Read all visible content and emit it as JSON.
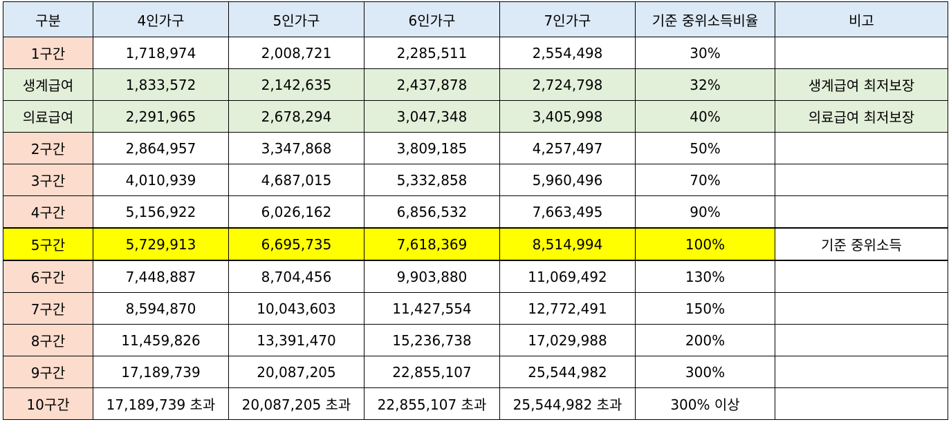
{
  "headers": [
    "구분",
    "4인가구",
    "5인가구",
    "6인가구",
    "7인가구",
    "기준 중위소득비율",
    "비고"
  ],
  "rows": [
    {
      "label": "1구간",
      "values": [
        "1,718,974",
        "2,008,721",
        "2,285,511",
        "2,554,498"
      ],
      "ratio": "30%",
      "note": ""
    },
    {
      "label": "생계급여",
      "values": [
        "1,833,572",
        "2,142,635",
        "2,437,878",
        "2,724,798"
      ],
      "ratio": "32%",
      "note": "생계급여 최저보장"
    },
    {
      "label": "의료급여",
      "values": [
        "2,291,965",
        "2,678,294",
        "3,047,348",
        "3,405,998"
      ],
      "ratio": "40%",
      "note": "의료급여 최저보장"
    },
    {
      "label": "2구간",
      "values": [
        "2,864,957",
        "3,347,868",
        "3,809,185",
        "4,257,497"
      ],
      "ratio": "50%",
      "note": ""
    },
    {
      "label": "3구간",
      "values": [
        "4,010,939",
        "4,687,015",
        "5,332,858",
        "5,960,496"
      ],
      "ratio": "70%",
      "note": ""
    },
    {
      "label": "4구간",
      "values": [
        "5,156,922",
        "6,026,162",
        "6,856,532",
        "7,663,495"
      ],
      "ratio": "90%",
      "note": ""
    },
    {
      "label": "5구간",
      "values": [
        "5,729,913",
        "6,695,735",
        "7,618,369",
        "8,514,994"
      ],
      "ratio": "100%",
      "note": "기준 중위소득"
    },
    {
      "label": "6구간",
      "values": [
        "7,448,887",
        "8,704,456",
        "9,903,880",
        "11,069,492"
      ],
      "ratio": "130%",
      "note": ""
    },
    {
      "label": "7구간",
      "values": [
        "8,594,870",
        "10,043,603",
        "11,427,554",
        "12,772,491"
      ],
      "ratio": "150%",
      "note": ""
    },
    {
      "label": "8구간",
      "values": [
        "11,459,826",
        "13,391,470",
        "15,236,738",
        "17,029,988"
      ],
      "ratio": "200%",
      "note": ""
    },
    {
      "label": "9구간",
      "values": [
        "17,189,739",
        "20,087,205",
        "22,855,107",
        "25,544,982"
      ],
      "ratio": "300%",
      "note": ""
    },
    {
      "label": "10구간",
      "values": [
        "17,189,739 초과",
        "20,087,205 초과",
        "22,855,107 초과",
        "25,544,982 초과"
      ],
      "ratio": "300% 이상",
      "note": ""
    }
  ]
}
